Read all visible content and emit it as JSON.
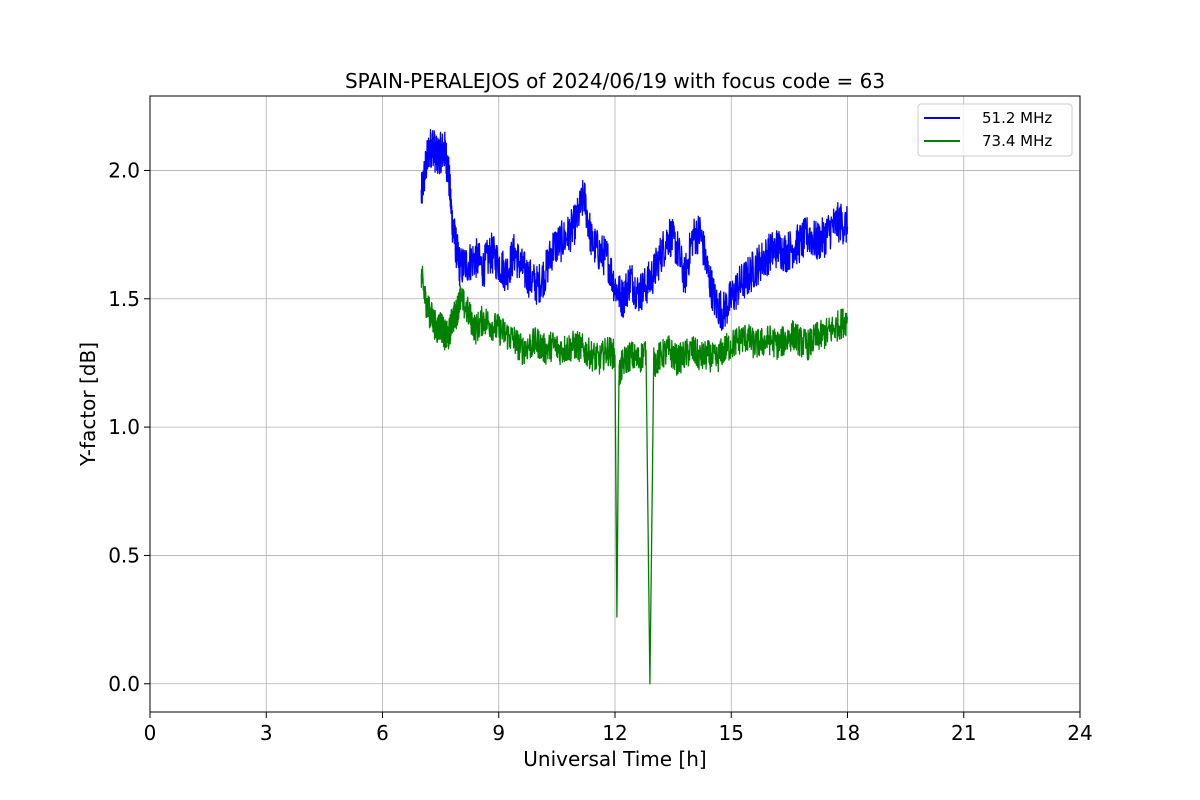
{
  "chart_data": {
    "type": "line",
    "title": "SPAIN-PERALEJOS of 2024/06/19 with focus code = 63",
    "xlabel": "Universal Time [h]",
    "ylabel": "Y-factor [dB]",
    "xlim": [
      0,
      24
    ],
    "ylim": [
      -0.11,
      2.29
    ],
    "xticks": [
      0,
      3,
      6,
      9,
      12,
      15,
      18,
      21,
      24
    ],
    "xtick_labels": [
      "0",
      "3",
      "6",
      "9",
      "12",
      "15",
      "18",
      "21",
      "24"
    ],
    "yticks": [
      0.0,
      0.5,
      1.0,
      1.5,
      2.0
    ],
    "ytick_labels": [
      "0.0",
      "0.5",
      "1.0",
      "1.5",
      "2.0"
    ],
    "grid": true,
    "legend_position": "top-right",
    "series": [
      {
        "name": "51.2 MHz",
        "color": "#0000ff",
        "x": [
          7.0,
          7.1,
          7.2,
          7.3,
          7.4,
          7.5,
          7.6,
          7.7,
          7.8,
          7.9,
          8.0,
          8.2,
          8.4,
          8.6,
          8.8,
          9.0,
          9.2,
          9.4,
          9.6,
          9.8,
          10.0,
          10.2,
          10.4,
          10.6,
          10.8,
          11.0,
          11.2,
          11.4,
          11.6,
          11.8,
          12.0,
          12.2,
          12.4,
          12.6,
          12.8,
          13.0,
          13.2,
          13.4,
          13.6,
          13.8,
          14.0,
          14.2,
          14.4,
          14.6,
          14.8,
          15.0,
          15.2,
          15.4,
          15.6,
          15.8,
          16.0,
          16.2,
          16.4,
          16.6,
          16.8,
          17.0,
          17.2,
          17.4,
          17.6,
          17.8,
          18.0
        ],
        "y": [
          1.9,
          2.0,
          2.08,
          2.1,
          2.05,
          2.07,
          2.08,
          2.0,
          1.8,
          1.7,
          1.62,
          1.64,
          1.66,
          1.62,
          1.68,
          1.64,
          1.6,
          1.68,
          1.62,
          1.58,
          1.55,
          1.6,
          1.7,
          1.72,
          1.75,
          1.8,
          1.9,
          1.72,
          1.68,
          1.66,
          1.55,
          1.5,
          1.58,
          1.52,
          1.55,
          1.6,
          1.68,
          1.75,
          1.7,
          1.58,
          1.74,
          1.76,
          1.6,
          1.48,
          1.45,
          1.5,
          1.55,
          1.58,
          1.62,
          1.65,
          1.68,
          1.7,
          1.68,
          1.7,
          1.72,
          1.75,
          1.72,
          1.74,
          1.78,
          1.8,
          1.78
        ]
      },
      {
        "name": "73.4 MHz",
        "color": "#008000",
        "x": [
          7.0,
          7.1,
          7.2,
          7.3,
          7.4,
          7.5,
          7.6,
          7.7,
          7.8,
          7.9,
          8.0,
          8.2,
          8.4,
          8.6,
          8.8,
          9.0,
          9.2,
          9.4,
          9.6,
          9.8,
          10.0,
          10.2,
          10.4,
          10.6,
          10.8,
          11.0,
          11.2,
          11.4,
          11.6,
          11.8,
          12.0,
          12.05,
          12.1,
          12.2,
          12.4,
          12.6,
          12.8,
          12.9,
          13.0,
          13.2,
          13.4,
          13.6,
          13.8,
          14.0,
          14.2,
          14.4,
          14.6,
          14.8,
          15.0,
          15.2,
          15.4,
          15.6,
          15.8,
          16.0,
          16.2,
          16.4,
          16.6,
          16.8,
          17.0,
          17.2,
          17.4,
          17.6,
          17.8,
          18.0
        ],
        "y": [
          1.6,
          1.5,
          1.45,
          1.42,
          1.38,
          1.4,
          1.36,
          1.35,
          1.42,
          1.44,
          1.5,
          1.45,
          1.38,
          1.42,
          1.4,
          1.38,
          1.36,
          1.34,
          1.3,
          1.32,
          1.33,
          1.3,
          1.32,
          1.3,
          1.31,
          1.32,
          1.3,
          1.28,
          1.26,
          1.3,
          1.28,
          0.26,
          1.2,
          1.25,
          1.28,
          1.26,
          1.3,
          0.0,
          1.25,
          1.28,
          1.3,
          1.26,
          1.28,
          1.3,
          1.27,
          1.28,
          1.26,
          1.3,
          1.32,
          1.34,
          1.35,
          1.32,
          1.33,
          1.34,
          1.32,
          1.34,
          1.36,
          1.33,
          1.32,
          1.35,
          1.36,
          1.38,
          1.4,
          1.42
        ]
      }
    ]
  }
}
